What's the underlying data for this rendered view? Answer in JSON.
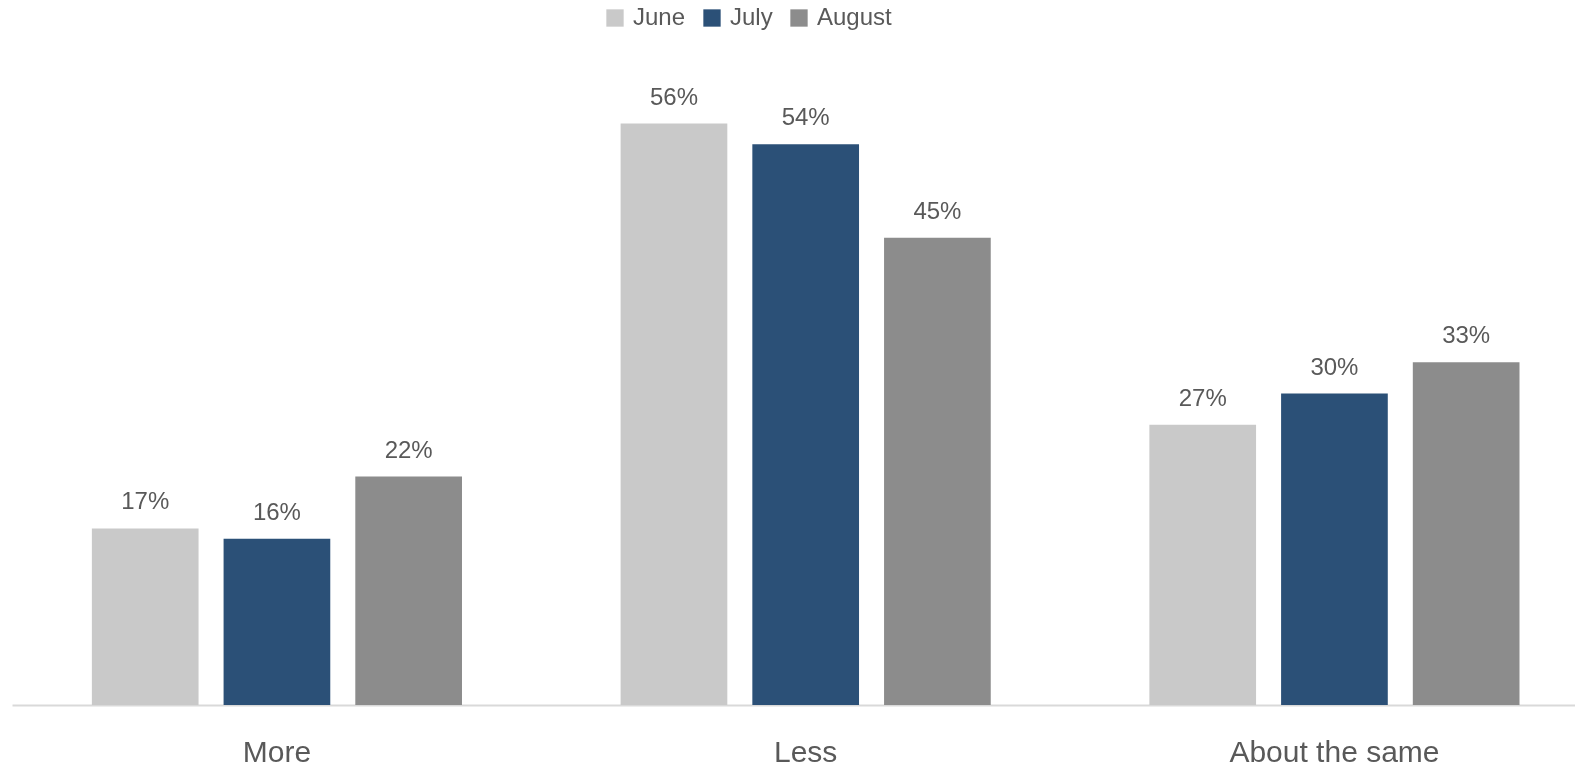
{
  "chart_data": {
    "type": "bar",
    "categories": [
      "More",
      "Less",
      "About the same"
    ],
    "series": [
      {
        "name": "June",
        "color": "#c9c9c9",
        "values": [
          17,
          56,
          27
        ],
        "value_labels": [
          "17%",
          "56%",
          "27%"
        ]
      },
      {
        "name": "July",
        "color": "#2b5077",
        "values": [
          16,
          54,
          30
        ],
        "value_labels": [
          "16%",
          "54%",
          "30%"
        ]
      },
      {
        "name": "August",
        "color": "#8c8c8c",
        "values": [
          22,
          45,
          33
        ],
        "value_labels": [
          "22%",
          "45%",
          "33%"
        ]
      }
    ],
    "legend": "top"
  }
}
